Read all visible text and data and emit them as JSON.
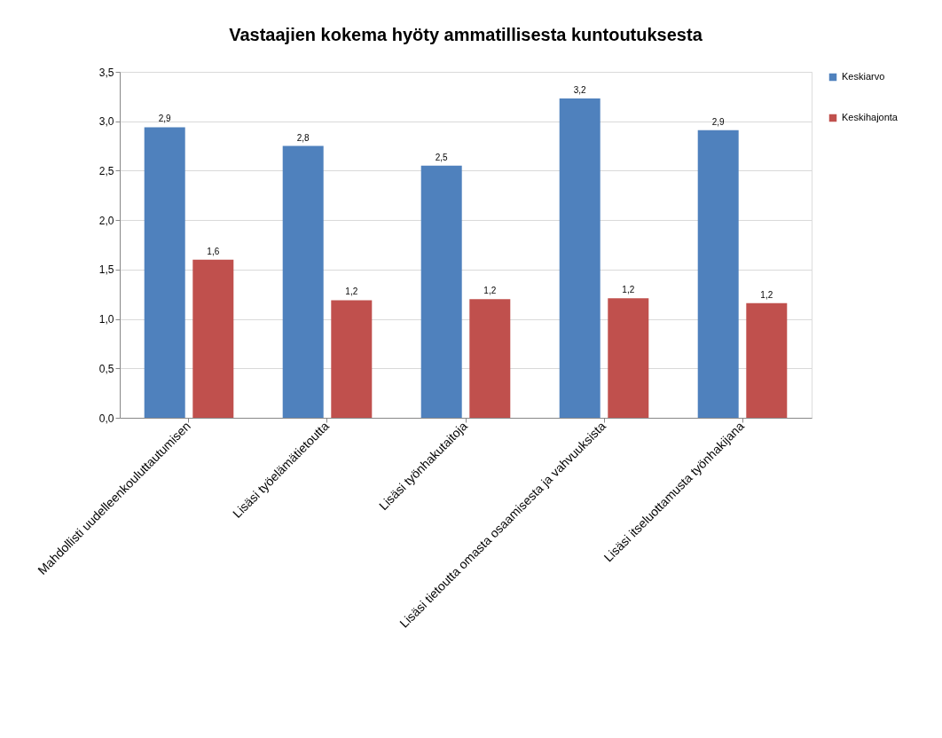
{
  "chart_data": {
    "type": "bar",
    "title": "Vastaajien kokema hyöty ammatillisesta kuntoutuksesta",
    "categories": [
      "Mahdollisti uudelleenkouluttautumisen",
      "Lisäsi työelämätietoutta",
      "Lisäsi työnhakutaitoja",
      "Lisäsi tietoutta omasta osaamisesta ja vahvuuksista",
      "Lisäsi itseluottamusta työnhakijana"
    ],
    "series": [
      {
        "name": "Keskiarvo",
        "color": "#4f81bd",
        "values": [
          2.94,
          2.75,
          2.55,
          3.23,
          2.91
        ],
        "value_labels": [
          "2,9",
          "2,8",
          "2,5",
          "3,2",
          "2,9"
        ]
      },
      {
        "name": "Keskihajonta",
        "color": "#c0504d",
        "values": [
          1.6,
          1.19,
          1.2,
          1.21,
          1.16
        ],
        "value_labels": [
          "1,6",
          "1,2",
          "1,2",
          "1,2",
          "1,2"
        ]
      }
    ],
    "ylim": [
      0,
      3.5
    ],
    "yticks": [
      {
        "value": 0,
        "label": "0,0"
      },
      {
        "value": 0.5,
        "label": "0,5"
      },
      {
        "value": 1,
        "label": "1,0"
      },
      {
        "value": 1.5,
        "label": "1,5"
      },
      {
        "value": 2,
        "label": "2,0"
      },
      {
        "value": 2.5,
        "label": "2,5"
      },
      {
        "value": 3,
        "label": "3,0"
      },
      {
        "value": 3.5,
        "label": "3,5"
      }
    ],
    "grid": "y",
    "legend": "right"
  }
}
